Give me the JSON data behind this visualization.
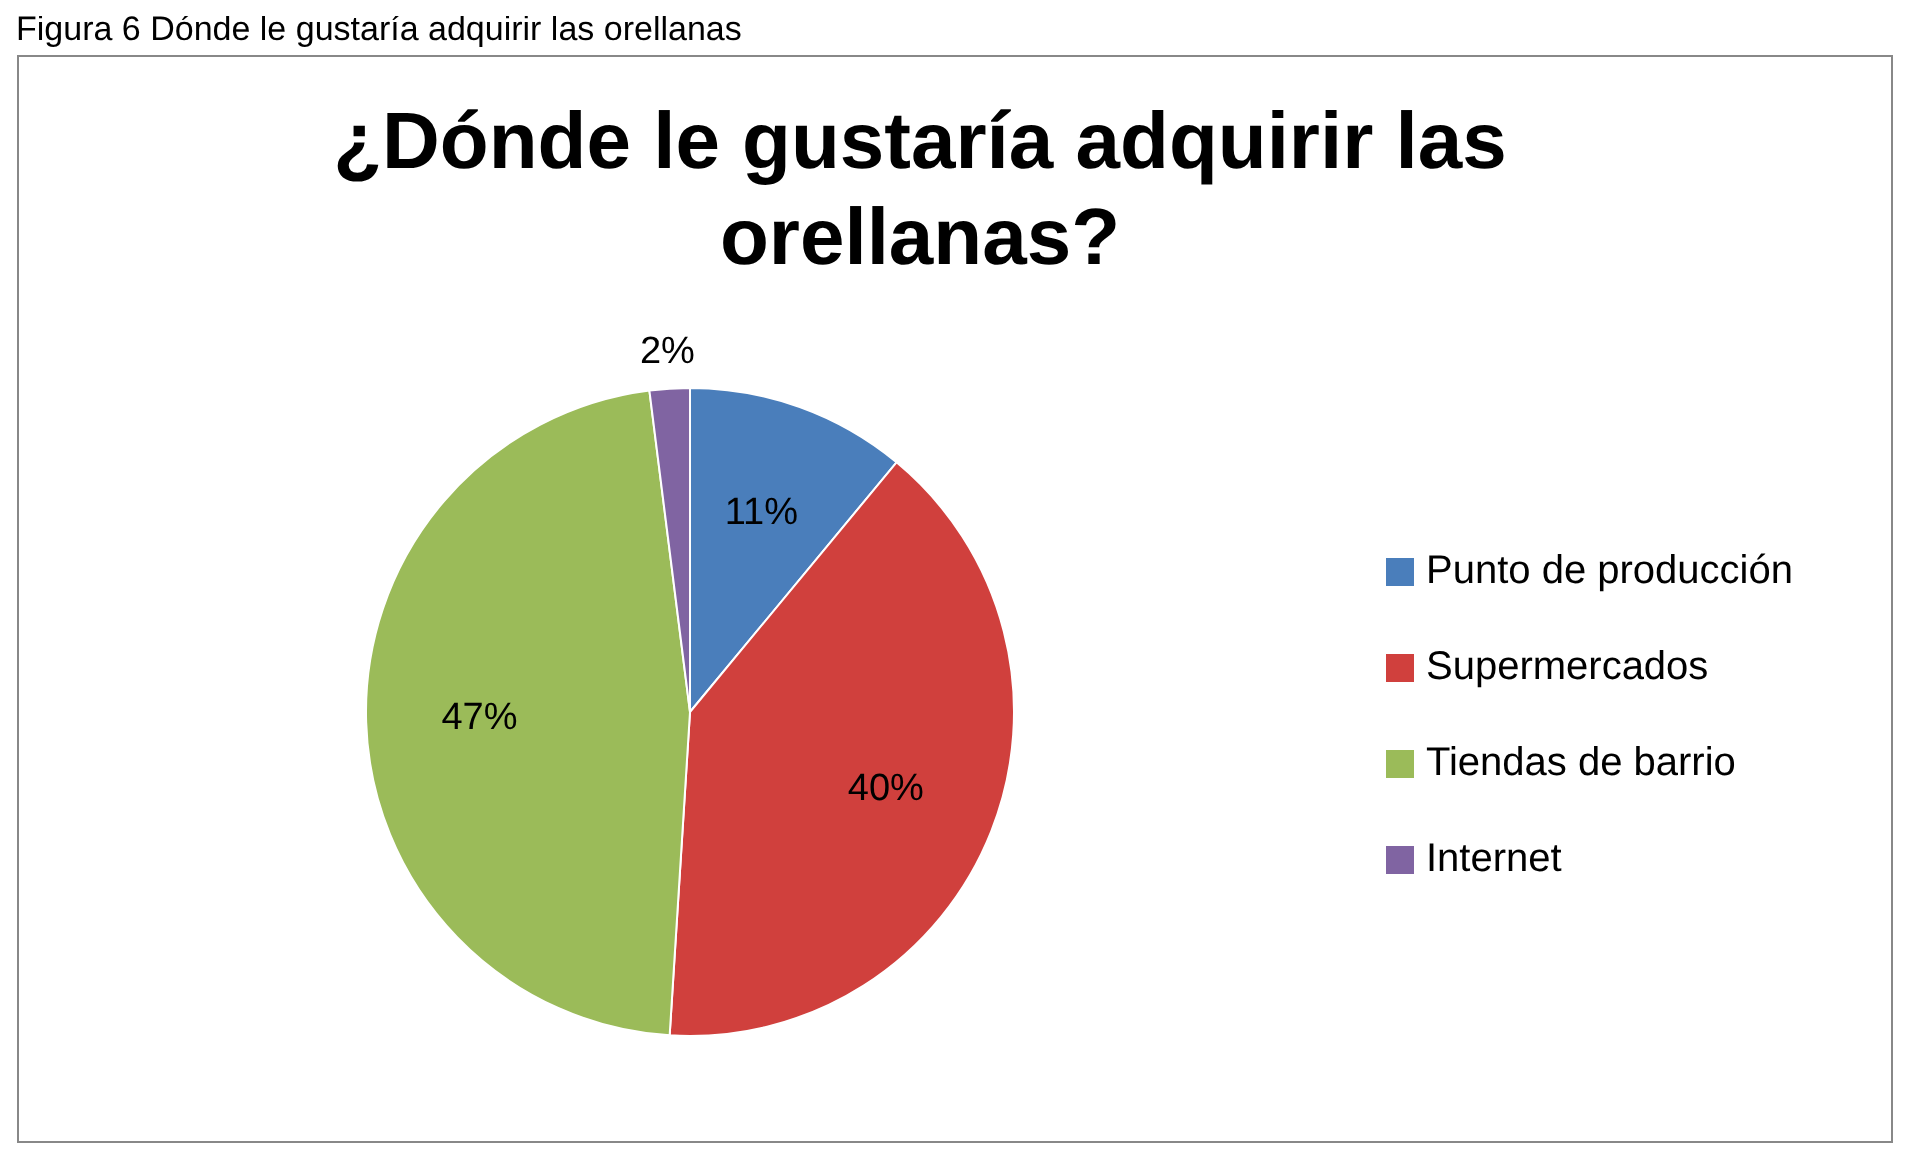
{
  "chart_data": {
    "type": "pie",
    "title": "¿Dónde le gustaría adquirir las orellanas?",
    "annotations": [
      "Figura 6 Dónde le gustaría adquirir las orellanas"
    ],
    "categories": [
      "Punto de producción",
      "Supermercados",
      "Tiendas de barrio",
      "Internet"
    ],
    "values": [
      11,
      40,
      47,
      2
    ],
    "colors": [
      "#4a7ebb",
      "#d0403d",
      "#9bbb59",
      "#8064a2"
    ],
    "value_labels": [
      "11%",
      "40%",
      "47%",
      "2%"
    ],
    "legend": "right"
  }
}
